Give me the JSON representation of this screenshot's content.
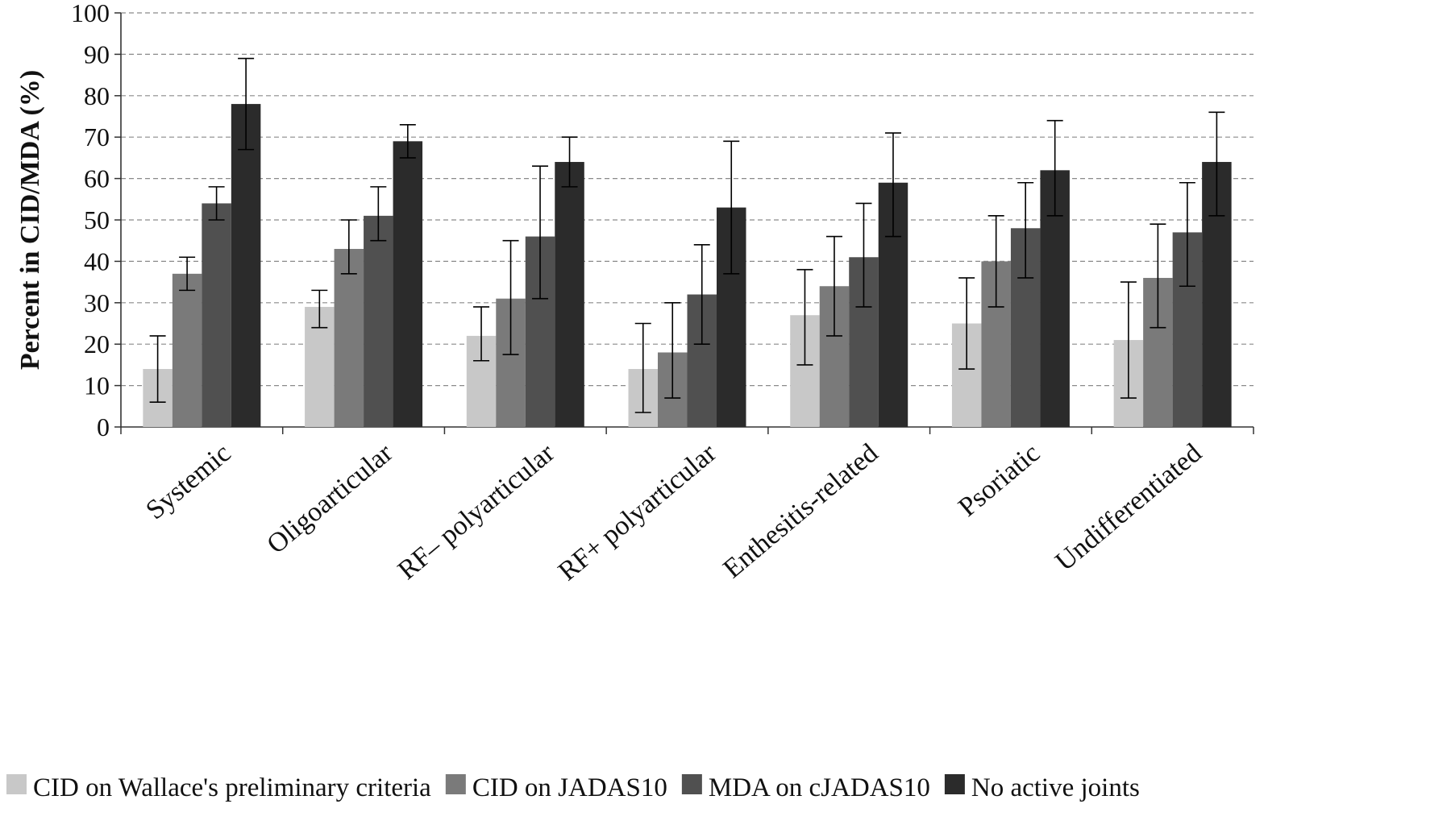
{
  "chart_data": {
    "type": "bar",
    "title": "",
    "xlabel": "",
    "ylabel": "Percent in CID/MDA (%)",
    "ylim": [
      0,
      100
    ],
    "yticks": [
      0,
      10,
      20,
      30,
      40,
      50,
      60,
      70,
      80,
      90,
      100
    ],
    "grid": "horizontal dashed",
    "legend_position": "bottom",
    "categories": [
      "Systemic",
      "Oligoarticular",
      "RF– polyarticular",
      "RF+ polyarticular",
      "Enthesitis-related",
      "Psoriatic",
      "Undifferentiated"
    ],
    "series": [
      {
        "name": "CID on Wallace's preliminary criteria",
        "color": "#c8c8c8",
        "values": [
          14,
          29,
          22,
          14,
          27,
          25,
          21
        ],
        "err_low": [
          6,
          24,
          16,
          3.5,
          15,
          14,
          7
        ],
        "err_high": [
          22,
          33,
          29,
          25,
          38,
          36,
          35
        ]
      },
      {
        "name": "CID on JADAS10",
        "color": "#7a7a7a",
        "values": [
          37,
          43,
          31,
          18,
          34,
          40,
          36
        ],
        "err_low": [
          33,
          37,
          17.5,
          7,
          22,
          29,
          24
        ],
        "err_high": [
          41,
          50,
          45,
          30,
          46,
          51,
          49
        ]
      },
      {
        "name": "MDA on cJADAS10",
        "color": "#505050",
        "values": [
          54,
          51,
          46,
          32,
          41,
          48,
          47
        ],
        "err_low": [
          50,
          45,
          31,
          20,
          29,
          36,
          34
        ],
        "err_high": [
          58,
          58,
          63,
          44,
          54,
          59,
          59
        ]
      },
      {
        "name": "No active joints",
        "color": "#2b2b2b",
        "values": [
          78,
          69,
          64,
          53,
          59,
          62,
          64
        ],
        "err_low": [
          67,
          65,
          58,
          37,
          46,
          51,
          51
        ],
        "err_high": [
          89,
          73,
          70,
          69,
          71,
          74,
          76
        ]
      }
    ]
  }
}
